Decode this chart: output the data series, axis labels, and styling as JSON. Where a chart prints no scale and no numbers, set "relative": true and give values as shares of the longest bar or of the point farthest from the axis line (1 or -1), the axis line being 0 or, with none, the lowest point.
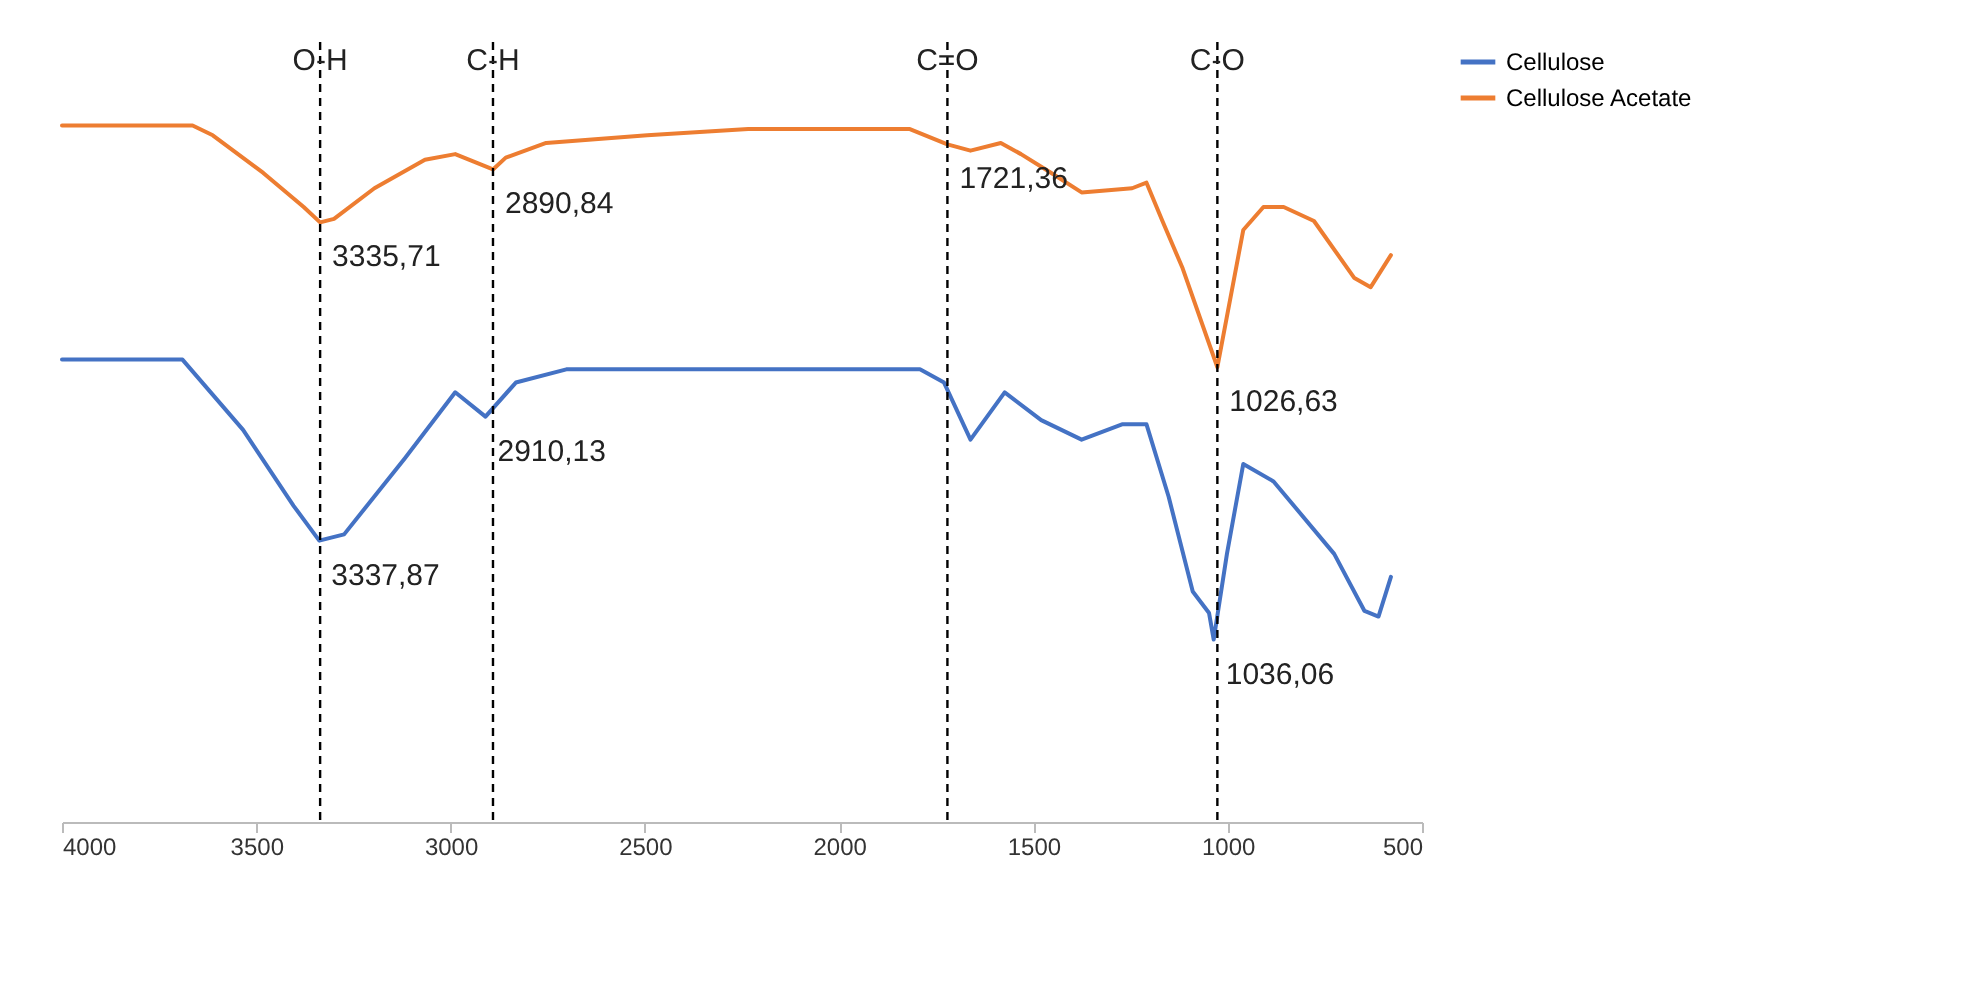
{
  "chart_data": {
    "type": "line",
    "relative": true,
    "grid": false,
    "legend": "right",
    "line_style": "solid",
    "marker": "none",
    "xlim": [
      4000,
      500
    ],
    "xticks": [
      4000,
      3500,
      3000,
      2500,
      2000,
      1500,
      1000,
      500
    ],
    "series": [
      {
        "name": "Cellulose",
        "color": "#4472c4",
        "x": [
          4000,
          3690,
          3534,
          3404,
          3337.87,
          3274,
          3118,
          2988,
          2910.13,
          2832,
          2702,
          2078,
          1792,
          1730,
          1662,
          1574,
          1480,
          1376,
          1272,
          1209,
          1152,
          1090,
          1048,
          1036.06,
          1002,
          960,
          882,
          726,
          648,
          612,
          580
        ],
        "values": [
          0.664,
          0.664,
          0.563,
          0.454,
          0.404,
          0.413,
          0.522,
          0.617,
          0.582,
          0.631,
          0.65,
          0.65,
          0.65,
          0.631,
          0.549,
          0.617,
          0.577,
          0.549,
          0.571,
          0.571,
          0.467,
          0.331,
          0.3,
          0.262,
          0.385,
          0.514,
          0.489,
          0.385,
          0.303,
          0.295,
          0.352
        ]
      },
      {
        "name": "Cellulose Acetate",
        "color": "#ed7d31",
        "x": [
          4000,
          3664,
          3612,
          3482,
          3378,
          3335.71,
          3300,
          3196,
          3066,
          2988,
          2890.84,
          2858,
          2754,
          2494,
          2234,
          1818,
          1721.36,
          1662,
          1584,
          1532,
          1454,
          1376,
          1246,
          1209,
          1168,
          1116,
          1026.63,
          960,
          908,
          856,
          778,
          674,
          632,
          580
        ],
        "values": [
          1.0,
          1.0,
          0.986,
          0.932,
          0.883,
          0.861,
          0.866,
          0.91,
          0.951,
          0.959,
          0.937,
          0.954,
          0.975,
          0.986,
          0.995,
          0.995,
          0.973,
          0.964,
          0.975,
          0.959,
          0.932,
          0.904,
          0.91,
          0.918,
          0.863,
          0.795,
          0.653,
          0.85,
          0.883,
          0.883,
          0.863,
          0.781,
          0.768,
          0.814
        ]
      }
    ],
    "ref_lines": [
      {
        "axis": "x",
        "value": 3335.71,
        "label": "O-H",
        "line_style": "dashed",
        "color": "#000000"
      },
      {
        "axis": "x",
        "value": 2890.84,
        "label": "C-H",
        "line_style": "dashed",
        "color": "#000000"
      },
      {
        "axis": "x",
        "value": 1721.36,
        "label": "C=O",
        "line_style": "dashed",
        "color": "#000000"
      },
      {
        "axis": "x",
        "value": 1026.63,
        "label": "C-O",
        "line_style": "dashed",
        "color": "#000000"
      }
    ],
    "annotations": [
      {
        "text": "3335,71",
        "x": 3335.71,
        "y": 0.861
      },
      {
        "text": "2890,84",
        "x": 2890.84,
        "y": 0.937
      },
      {
        "text": "1721,36",
        "x": 1721.36,
        "y": 0.973
      },
      {
        "text": "1026,63",
        "x": 1026.63,
        "y": 0.653
      },
      {
        "text": "3337,87",
        "x": 3337.87,
        "y": 0.404
      },
      {
        "text": "2910,13",
        "x": 2910.13,
        "y": 0.582
      },
      {
        "text": "1036,06",
        "x": 1036.06,
        "y": 0.262
      }
    ]
  }
}
